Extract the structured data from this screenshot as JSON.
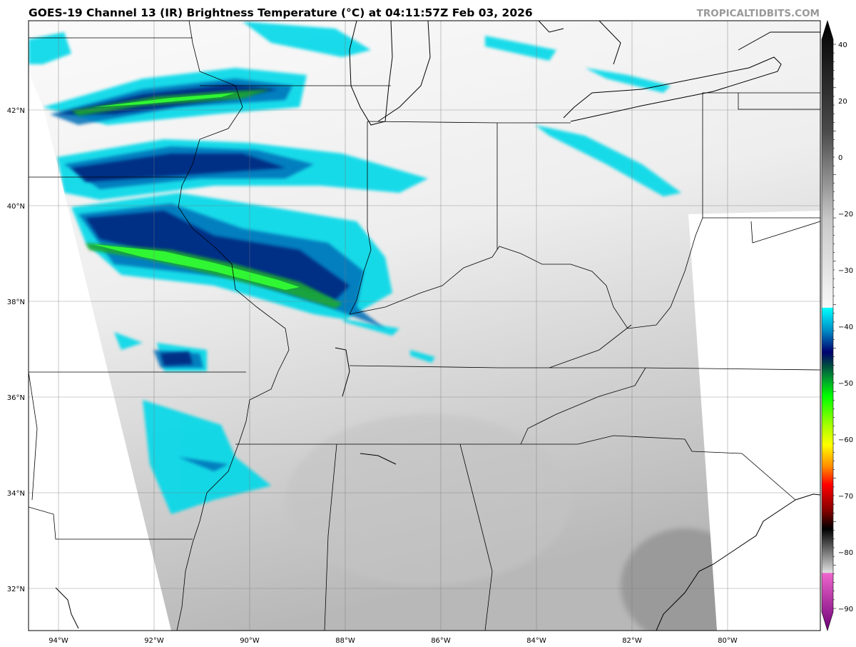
{
  "header": {
    "title": "GOES-19 Channel 13 (IR) Brightness Temperature (°C) at 04:11:57Z Feb 03, 2026",
    "brand": "TROPICALTIDBITS.COM"
  },
  "map": {
    "lon_ticks": [
      "94°W",
      "92°W",
      "90°W",
      "88°W",
      "86°W",
      "84°W",
      "82°W",
      "80°W"
    ],
    "lat_ticks": [
      "42°N",
      "40°N",
      "38°N",
      "36°N",
      "34°N",
      "32°N"
    ],
    "extent": {
      "lon": [
        -94.6,
        -78.0
      ],
      "lat": [
        31.1,
        43.8
      ]
    }
  },
  "colorbar": {
    "ticks": [
      "40",
      "20",
      "0",
      "−20",
      "−30",
      "−40",
      "−50",
      "−60",
      "−70",
      "−80",
      "−90"
    ],
    "range": [
      -93,
      45
    ],
    "stops": [
      {
        "v": 45,
        "c": "#000000"
      },
      {
        "v": 20,
        "c": "#4a4a4a"
      },
      {
        "v": 0,
        "c": "#c8c8c8"
      },
      {
        "v": -19.9,
        "c": "#f8f8f8"
      },
      {
        "v": -20,
        "c": "#00ffff"
      },
      {
        "v": -25,
        "c": "#0090c8"
      },
      {
        "v": -30,
        "c": "#00006e"
      },
      {
        "v": -33,
        "c": "#004a40"
      },
      {
        "v": -36,
        "c": "#009a30"
      },
      {
        "v": -40,
        "c": "#00ff00"
      },
      {
        "v": -47,
        "c": "#b0ff00"
      },
      {
        "v": -51,
        "c": "#ffff00"
      },
      {
        "v": -56,
        "c": "#ff8800"
      },
      {
        "v": -60,
        "c": "#ff0000"
      },
      {
        "v": -66,
        "c": "#800000"
      },
      {
        "v": -70,
        "c": "#000000"
      },
      {
        "v": -79.9,
        "c": "#e0e0e0"
      },
      {
        "v": -80,
        "c": "#ee66cc"
      },
      {
        "v": -93,
        "c": "#700078"
      }
    ]
  }
}
